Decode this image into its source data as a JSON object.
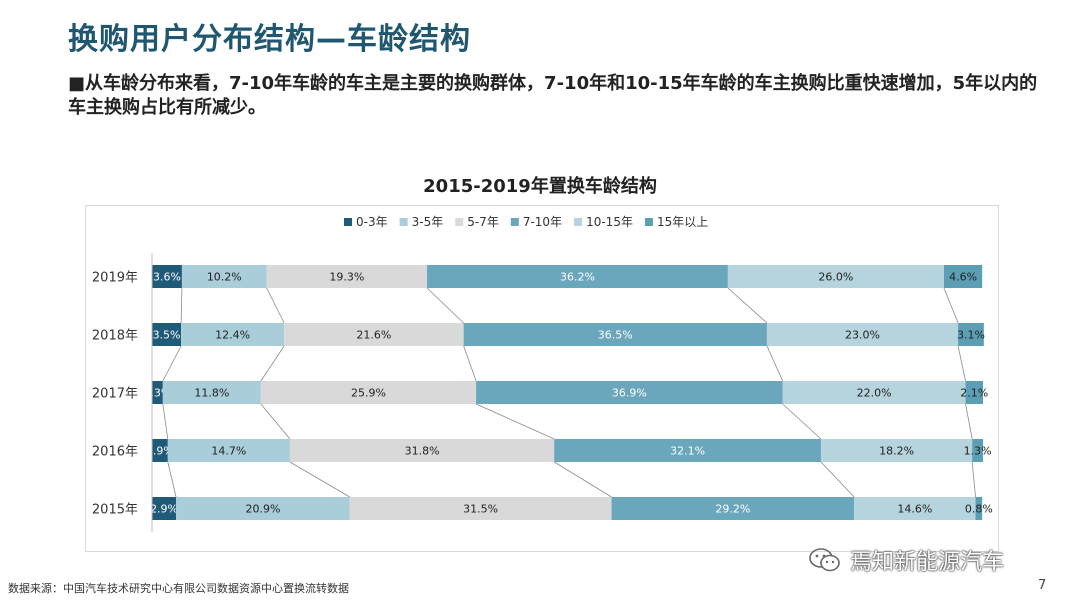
{
  "page": {
    "title": "换购用户分布结构—车龄结构",
    "description": "■从车龄分布来看，7-10年车龄的车主是主要的换购群体，7-10年和10-15年车龄的车主换购比重快速增加，5年以内的车主换购占比有所减少。",
    "source": "数据来源：中国汽车技术研究中心有限公司数据资源中心置换流转数据",
    "watermark": "焉知新能源汽车",
    "page_number": "7"
  },
  "colors": {
    "title": "#1f5670",
    "series": [
      "#1f5a78",
      "#a9cdd9",
      "#d9d9d9",
      "#6aa7bd",
      "#b6d4dd",
      "#5c9fb4"
    ],
    "label_light": "#ffffff",
    "label_dark": "#222222"
  },
  "chart_data": {
    "type": "bar",
    "orientation": "horizontal",
    "stacked": "100%",
    "title": "2015-2019年置换车龄结构",
    "categories": [
      "2019年",
      "2018年",
      "2017年",
      "2016年",
      "2015年"
    ],
    "series": [
      {
        "name": "0-3年",
        "values": [
          3.6,
          3.5,
          1.3,
          1.9,
          2.9
        ]
      },
      {
        "name": "3-5年",
        "values": [
          10.2,
          12.4,
          11.8,
          14.7,
          20.9
        ]
      },
      {
        "name": "5-7年",
        "values": [
          19.3,
          21.6,
          25.9,
          31.8,
          31.5
        ]
      },
      {
        "name": "7-10年",
        "values": [
          36.2,
          36.5,
          36.9,
          32.1,
          29.2
        ]
      },
      {
        "name": "10-15年",
        "values": [
          26.0,
          23.0,
          22.0,
          18.2,
          14.6
        ]
      },
      {
        "name": "15年以上",
        "values": [
          4.6,
          3.1,
          2.1,
          1.3,
          0.8
        ]
      }
    ],
    "value_format": "{v}%",
    "legend_position": "top",
    "series_lines": true,
    "grid": false
  }
}
